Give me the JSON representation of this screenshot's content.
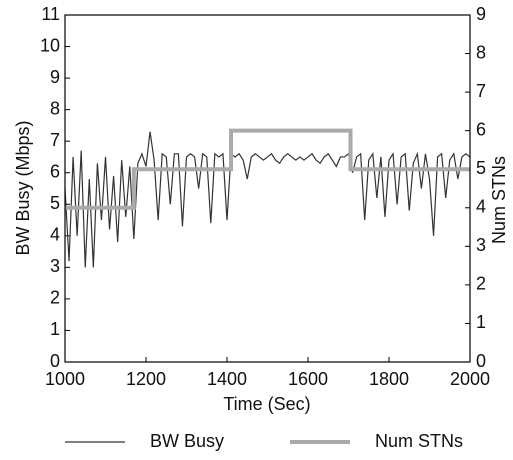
{
  "chart_data": {
    "type": "line",
    "xlabel": "Time (Sec)",
    "ylabel": "BW Busy (Mbps)",
    "y2label": "Num STNs",
    "xlim": [
      1000,
      2000
    ],
    "xticks": [
      1000,
      1200,
      1400,
      1600,
      1800,
      2000
    ],
    "ylim": [
      0,
      11
    ],
    "yticks": [
      0,
      1,
      2,
      3,
      4,
      5,
      6,
      7,
      8,
      9,
      10,
      11
    ],
    "y2lim": [
      0,
      9
    ],
    "y2ticks": [
      0,
      1,
      2,
      3,
      4,
      5,
      6,
      7,
      8,
      9
    ],
    "series": [
      {
        "name": "BW Busy",
        "color": "#333333",
        "x": [
          1000,
          1010,
          1020,
          1030,
          1040,
          1050,
          1060,
          1070,
          1080,
          1090,
          1100,
          1110,
          1120,
          1130,
          1140,
          1150,
          1160,
          1170,
          1180,
          1190,
          1200,
          1210,
          1220,
          1230,
          1240,
          1250,
          1260,
          1270,
          1280,
          1290,
          1300,
          1310,
          1320,
          1330,
          1340,
          1350,
          1360,
          1370,
          1380,
          1390,
          1400,
          1410,
          1420,
          1430,
          1440,
          1450,
          1460,
          1470,
          1480,
          1490,
          1500,
          1510,
          1520,
          1530,
          1540,
          1550,
          1560,
          1570,
          1580,
          1590,
          1600,
          1610,
          1620,
          1630,
          1640,
          1650,
          1660,
          1670,
          1680,
          1690,
          1700,
          1710,
          1720,
          1730,
          1740,
          1750,
          1760,
          1770,
          1780,
          1790,
          1800,
          1810,
          1820,
          1830,
          1840,
          1850,
          1860,
          1870,
          1880,
          1890,
          1900,
          1910,
          1920,
          1930,
          1940,
          1950,
          1960,
          1970,
          1980,
          1990,
          2000
        ],
        "values": [
          5.5,
          3.2,
          6.5,
          4.0,
          6.7,
          3.0,
          5.8,
          3.0,
          6.3,
          4.5,
          6.5,
          4.2,
          5.9,
          3.8,
          6.4,
          4.6,
          6.2,
          3.9,
          6.3,
          6.6,
          6.2,
          7.3,
          6.4,
          4.5,
          6.6,
          6.5,
          5.0,
          6.6,
          6.6,
          4.3,
          6.5,
          6.6,
          6.5,
          5.5,
          6.6,
          6.5,
          4.4,
          6.6,
          6.5,
          6.6,
          4.5,
          6.6,
          6.5,
          6.6,
          6.4,
          5.8,
          6.5,
          6.6,
          6.5,
          6.4,
          6.5,
          6.6,
          6.4,
          6.3,
          6.5,
          6.6,
          6.5,
          6.4,
          6.5,
          6.4,
          6.5,
          6.6,
          6.4,
          6.3,
          6.5,
          6.6,
          6.4,
          6.2,
          6.5,
          6.5,
          6.6,
          6.0,
          6.5,
          6.6,
          4.5,
          6.4,
          6.6,
          5.2,
          6.5,
          4.6,
          6.4,
          6.6,
          5.0,
          6.5,
          6.6,
          4.8,
          6.3,
          6.6,
          5.5,
          6.6,
          5.8,
          4.0,
          6.5,
          6.6,
          5.2,
          6.4,
          6.6,
          5.8,
          6.5,
          6.6,
          6.5
        ]
      },
      {
        "name": "Num STNs",
        "color": "#aaaaaa",
        "axis": "y2",
        "x": [
          1000,
          1170,
          1170,
          1410,
          1410,
          1705,
          1705,
          2000
        ],
        "values": [
          4,
          4,
          5,
          5,
          6,
          6,
          5,
          5
        ]
      }
    ]
  }
}
